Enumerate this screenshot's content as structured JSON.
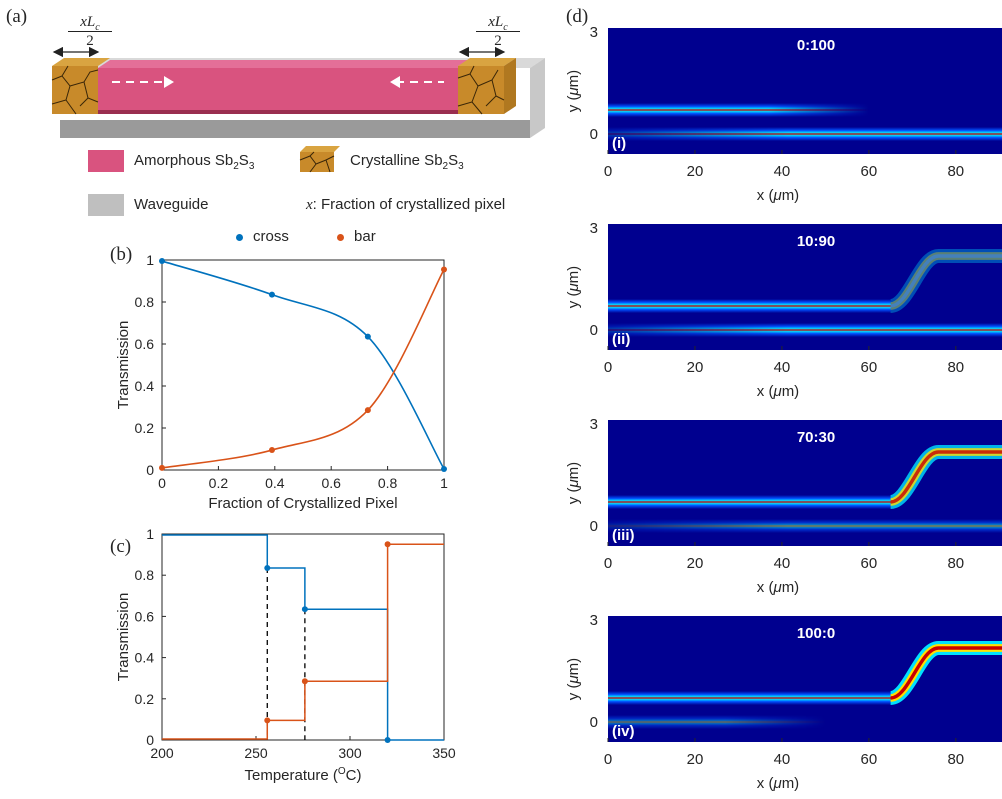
{
  "panels": {
    "a": {
      "label": "(a)",
      "dim_label_top": "xL",
      "dim_label_sub": "c",
      "dim_label_den": "2",
      "legend": {
        "amorphous": {
          "prefix": "Amorphous Sb",
          "s1": "2",
          "mid": "S",
          "s2": "3",
          "color": "#d9537f"
        },
        "crystalline": {
          "prefix": "Crystalline Sb",
          "s1": "2",
          "mid": "S",
          "s2": "3",
          "color": "#c88a2a"
        },
        "waveguide": {
          "text": "Waveguide",
          "color": "#bfbfbf"
        },
        "fraction": {
          "var": "x",
          "text": ": Fraction of crystallized pixel"
        }
      }
    },
    "b": {
      "label": "(b)"
    },
    "c": {
      "label": "(c)"
    },
    "d": {
      "label": "(d)"
    }
  },
  "chart_data": [
    {
      "id": "b",
      "type": "line",
      "xlabel": "Fraction of Crystallized Pixel",
      "ylabel": "Transmission",
      "xlim": [
        0,
        1
      ],
      "ylim": [
        0,
        1
      ],
      "xticks": [
        "0",
        "0.2",
        "0.4",
        "0.6",
        "0.8",
        "1"
      ],
      "yticks": [
        "0",
        "0.2",
        "0.4",
        "0.6",
        "0.8",
        "1"
      ],
      "legend_position": "top",
      "series": [
        {
          "name": "cross",
          "color": "#0072bd",
          "points": [
            [
              0,
              0.995
            ],
            [
              0.39,
              0.835
            ],
            [
              0.73,
              0.635
            ],
            [
              1,
              0.005
            ]
          ]
        },
        {
          "name": "bar",
          "color": "#d95319",
          "points": [
            [
              0,
              0.01
            ],
            [
              0.39,
              0.095
            ],
            [
              0.73,
              0.285
            ],
            [
              1,
              0.955
            ]
          ]
        }
      ]
    },
    {
      "id": "c",
      "type": "line",
      "xlabel": "Temperature (",
      "xlabel_sup": "O",
      "xlabel_end": "C)",
      "ylabel": "Transmission",
      "xlim": [
        200,
        350
      ],
      "ylim": [
        0,
        1
      ],
      "xticks": [
        "200",
        "250",
        "300",
        "350"
      ],
      "yticks": [
        "0",
        "0.2",
        "0.4",
        "0.6",
        "0.8",
        "1"
      ],
      "series": [
        {
          "name": "cross",
          "color": "#0072bd",
          "steps": [
            [
              200,
              0.995
            ],
            [
              256,
              0.835
            ],
            [
              276,
              0.635
            ],
            [
              320,
              0.0
            ],
            [
              350,
              0.0
            ]
          ],
          "points": [
            [
              256,
              0.835
            ],
            [
              276,
              0.635
            ],
            [
              320,
              0.0
            ]
          ]
        },
        {
          "name": "bar",
          "color": "#d95319",
          "steps": [
            [
              200,
              0.005
            ],
            [
              256,
              0.095
            ],
            [
              276,
              0.285
            ],
            [
              320,
              0.95
            ],
            [
              350,
              0.95
            ]
          ],
          "points": [
            [
              256,
              0.095
            ],
            [
              276,
              0.285
            ],
            [
              320,
              0.95
            ]
          ]
        }
      ],
      "dashed_x": [
        256,
        276
      ]
    },
    {
      "id": "d",
      "type": "heatmap",
      "xlabel": "x (",
      "xlabel_mu": "μ",
      "xlabel_end": "m)",
      "ylabel": "y (",
      "ylabel_mu": "μ",
      "ylabel_end": "m)",
      "xticks": [
        "0",
        "20",
        "40",
        "60",
        "80"
      ],
      "yticks": [
        "0",
        "3"
      ],
      "subplots": [
        {
          "ratio": "0:100",
          "tag": "(i)",
          "upper_fade": 60,
          "upper_bend": false,
          "lower_strength": 1.0
        },
        {
          "ratio": "10:90",
          "tag": "(ii)",
          "upper_fade": 75,
          "upper_bend": true,
          "bend_strength": 0.35,
          "lower_strength": 1.0
        },
        {
          "ratio": "70:30",
          "tag": "(iii)",
          "upper_fade": 100,
          "upper_bend": true,
          "bend_strength": 0.8,
          "lower_strength": 0.45
        },
        {
          "ratio": "100:0",
          "tag": "(iv)",
          "upper_fade": 100,
          "upper_bend": true,
          "bend_strength": 1.0,
          "lower_strength": 0.35,
          "lower_fade": 50
        }
      ]
    }
  ]
}
